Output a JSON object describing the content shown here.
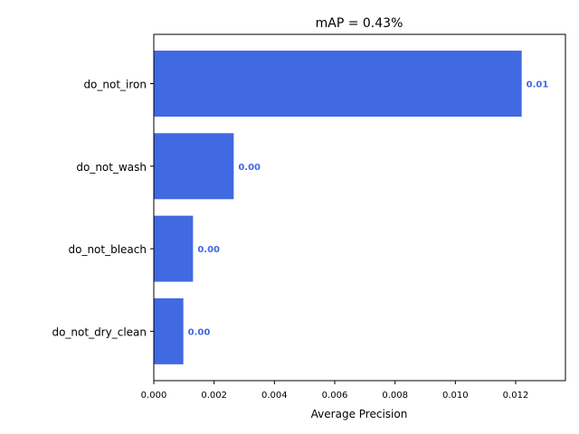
{
  "chart_data": {
    "type": "bar",
    "orientation": "horizontal",
    "title": "mAP = 0.43%",
    "xlabel": "Average Precision",
    "ylabel": "",
    "categories": [
      "do_not_iron",
      "do_not_wash",
      "do_not_bleach",
      "do_not_dry_clean"
    ],
    "values": [
      0.0122,
      0.00265,
      0.0013,
      0.00098
    ],
    "data_labels": [
      "0.01",
      "0.00",
      "0.00",
      "0.00"
    ],
    "xlim": [
      0,
      0.01365
    ],
    "xticks": [
      0,
      0.002,
      0.004,
      0.006,
      0.008,
      0.01,
      0.012
    ],
    "xtick_labels": [
      "0.000",
      "0.002",
      "0.004",
      "0.006",
      "0.008",
      "0.010",
      "0.012"
    ],
    "bar_color": "#4169e1",
    "grid": false,
    "legend": "none"
  }
}
